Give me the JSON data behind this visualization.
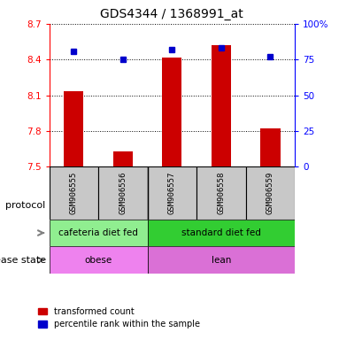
{
  "title": "GDS4344 / 1368991_at",
  "samples": [
    "GSM906555",
    "GSM906556",
    "GSM906557",
    "GSM906558",
    "GSM906559"
  ],
  "bar_values": [
    8.13,
    7.63,
    8.42,
    8.52,
    7.82
  ],
  "percentile_values": [
    81,
    75,
    82,
    83,
    77
  ],
  "y_min": 7.5,
  "y_max": 8.7,
  "y_ticks": [
    7.5,
    7.8,
    8.1,
    8.4,
    8.7
  ],
  "y_tick_labels": [
    "7.5",
    "7.8",
    "8.1",
    "8.4",
    "8.7"
  ],
  "right_y_ticks": [
    0,
    25,
    50,
    75,
    100
  ],
  "right_y_tick_labels": [
    "0",
    "25",
    "50",
    "75",
    "100%"
  ],
  "bar_color": "#cc0000",
  "square_color": "#0000cc",
  "plot_bg_color": "#ffffff",
  "protocol_groups": [
    {
      "label": "cafeteria diet fed",
      "start": 0,
      "end": 1,
      "color": "#90ee90"
    },
    {
      "label": "standard diet fed",
      "start": 2,
      "end": 4,
      "color": "#32cd32"
    }
  ],
  "disease_groups": [
    {
      "label": "obese",
      "start": 0,
      "end": 1,
      "color": "#ee82ee"
    },
    {
      "label": "lean",
      "start": 2,
      "end": 4,
      "color": "#da70d6"
    }
  ],
  "protocol_label": "protocol",
  "disease_label": "disease state",
  "legend_red": "transformed count",
  "legend_blue": "percentile rank within the sample",
  "sample_box_color": "#c8c8c8",
  "separator_idx": 2,
  "bar_width": 0.4
}
